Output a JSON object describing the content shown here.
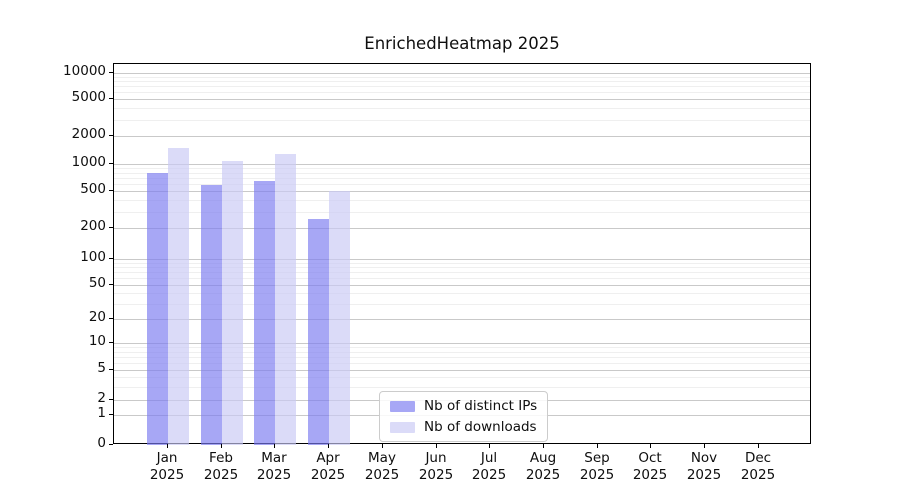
{
  "title": "EnrichedHeatmap 2025",
  "colors": {
    "series_distinct_ips_on_white": "#a9a9f4",
    "series_downloads_on_white": "#d9d9f8",
    "gridline_major": "#c9c9c9",
    "gridline_minor": "#efefef",
    "axis_spine": "#000000",
    "background": "#ffffff"
  },
  "chart_data": {
    "type": "bar",
    "title": "EnrichedHeatmap 2025",
    "x_year": "2025",
    "categories": [
      "Jan",
      "Feb",
      "Mar",
      "Apr",
      "May",
      "Jun",
      "Jul",
      "Aug",
      "Sep",
      "Oct",
      "Nov",
      "Dec"
    ],
    "series": [
      {
        "name": "Nb of distinct IPs",
        "fill_rgba": "rgba(121,121,240,0.66)",
        "values": [
          790,
          590,
          650,
          247,
          0,
          0,
          0,
          0,
          0,
          0,
          0,
          0
        ]
      },
      {
        "name": "Nb of downloads",
        "fill_rgba": "rgba(200,200,245,0.66)",
        "values": [
          1480,
          1090,
          1270,
          505,
          0,
          0,
          0,
          0,
          0,
          0,
          0,
          0
        ]
      }
    ],
    "yscale": "symlog",
    "ylim": [
      0,
      13000
    ],
    "yticks": [
      0,
      1,
      2,
      5,
      10,
      20,
      50,
      100,
      200,
      500,
      1000,
      2000,
      5000,
      10000
    ],
    "grid": {
      "major": true,
      "minor": true,
      "orientation": "horizontal"
    },
    "legend_position": "lower-center-inside",
    "xlabel": "",
    "ylabel": ""
  }
}
